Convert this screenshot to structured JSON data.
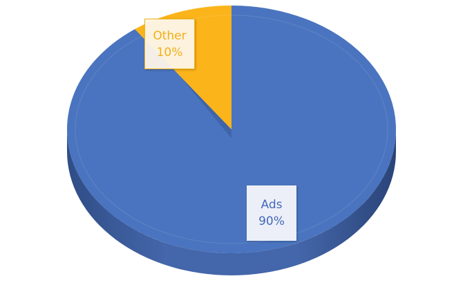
{
  "chart_data": {
    "type": "pie",
    "style": "3d",
    "categories": [
      "Ads",
      "Other"
    ],
    "values": [
      90,
      10
    ],
    "labels": [
      {
        "name": "Ads",
        "value": "90%"
      },
      {
        "name": "Other",
        "value": "10%"
      }
    ],
    "colors": {
      "Ads": "#4a74bf",
      "Other": "#fbb41a"
    },
    "legend": "none"
  }
}
